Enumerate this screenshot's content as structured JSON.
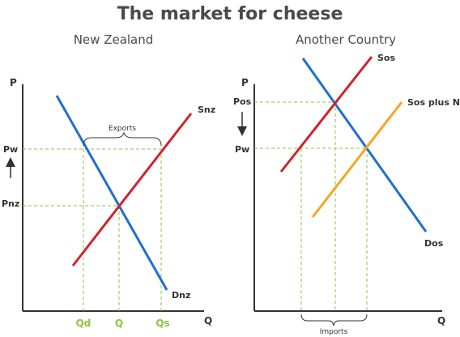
{
  "title": "The market for cheese",
  "colors": {
    "demand": "#1f6fd0",
    "supply": "#d1222b",
    "supply_plus": "#f5a623",
    "guide": "#8cc63f",
    "axis": "#333333",
    "text": "#4a4a4a"
  },
  "left_panel": {
    "title": "New Zealand",
    "y_axis_label": "P",
    "x_axis_label": "Q",
    "supply_label": "Snz",
    "demand_label": "Dnz",
    "price_world": "Pw",
    "price_domestic": "Pnz",
    "price_arrow": "up-arrow-icon",
    "bracket_label": "Exports",
    "x_ticks": {
      "qd": "Qd",
      "q": "Q",
      "qs": "Qs"
    }
  },
  "right_panel": {
    "title": "Another Country",
    "y_axis_label": "P",
    "x_axis_label": "Q",
    "supply_label": "Sos",
    "supply_plus_label": "Sos plus NZ",
    "demand_label": "Dos",
    "price_domestic": "Pos",
    "price_world": "Pw",
    "price_arrow": "down-arrow-icon",
    "bracket_label": "Imports"
  }
}
